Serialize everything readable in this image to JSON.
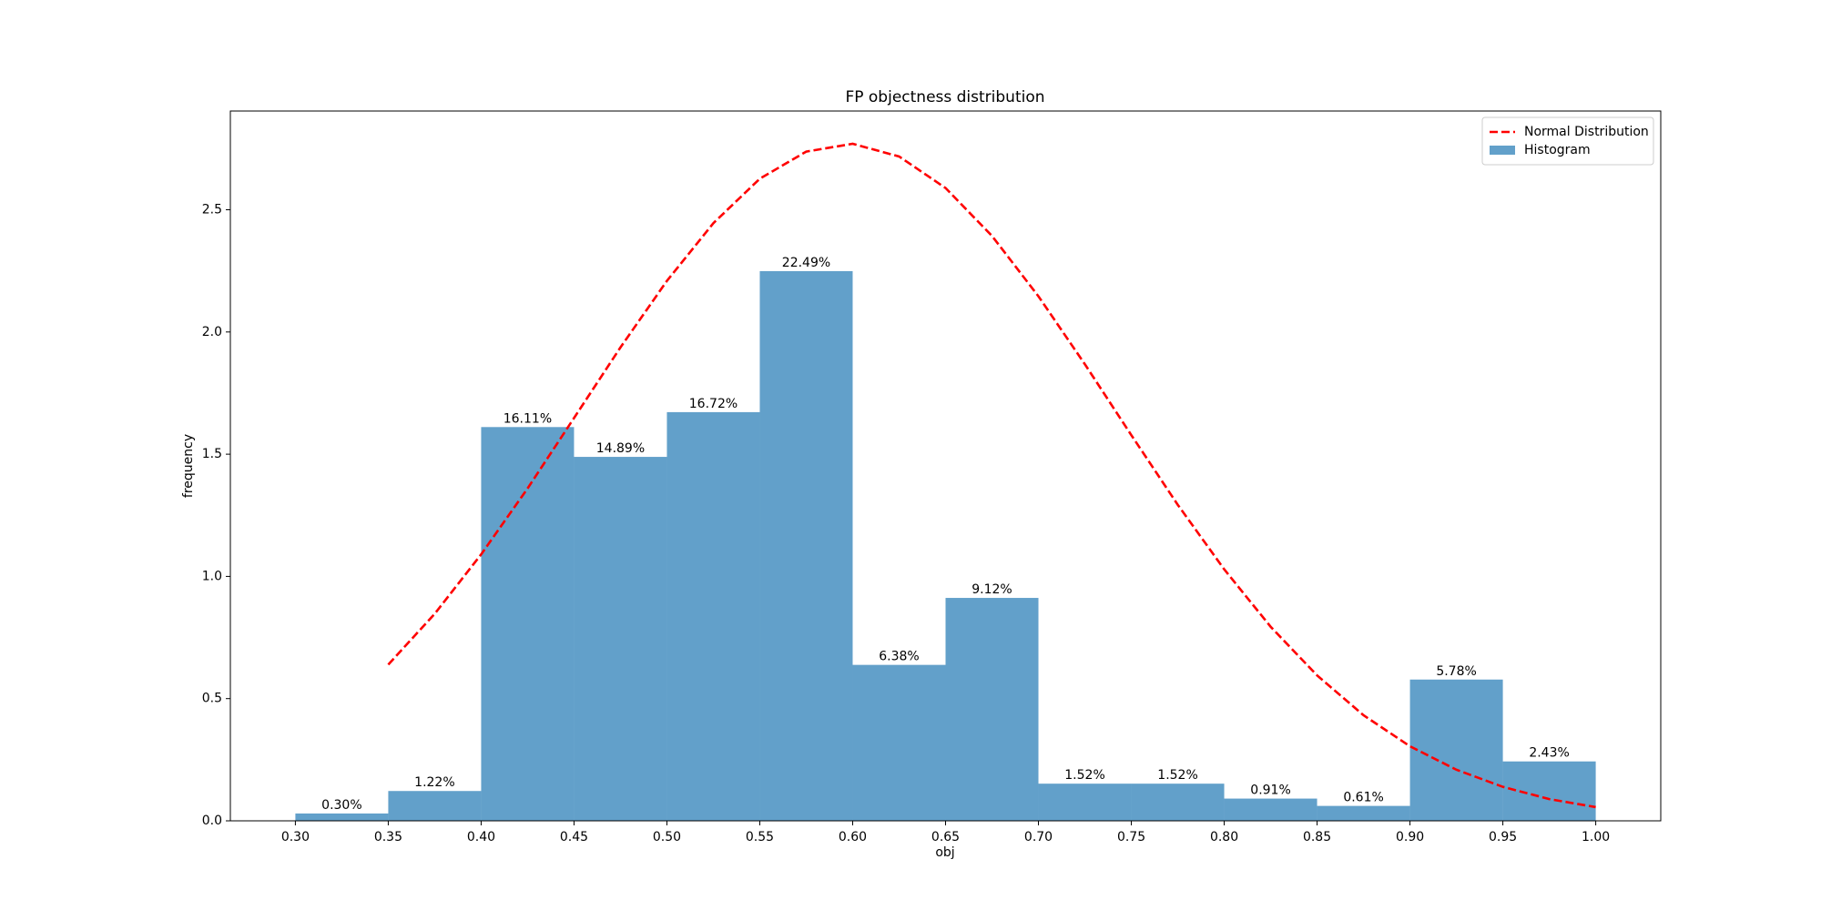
{
  "chart_data": {
    "type": "histogram",
    "title": "FP objectness distribution",
    "xlabel": "obj",
    "ylabel": "frequency",
    "name": "Histogram",
    "color": "#1f77b4",
    "opacity": 0.7,
    "bins": [
      0.3,
      0.35,
      0.4,
      0.45,
      0.5,
      0.55,
      0.6,
      0.65,
      0.7,
      0.75,
      0.8,
      0.85,
      0.9,
      0.95,
      1.0
    ],
    "values": [
      0.03,
      0.122,
      1.611,
      1.489,
      1.672,
      2.249,
      0.638,
      0.912,
      0.152,
      0.152,
      0.091,
      0.061,
      0.578,
      0.243
    ],
    "value_labels": [
      "0.30%",
      "1.22%",
      "16.11%",
      "14.89%",
      "16.72%",
      "22.49%",
      "6.38%",
      "9.12%",
      "1.52%",
      "1.52%",
      "0.91%",
      "0.61%",
      "5.78%",
      "2.43%"
    ],
    "lines": [
      {
        "name": "Normal Distribution",
        "color": "#ff0000",
        "style": "dashed",
        "x": [
          0.35,
          0.375,
          0.4,
          0.425,
          0.45,
          0.475,
          0.5,
          0.525,
          0.55,
          0.575,
          0.6,
          0.625,
          0.65,
          0.675,
          0.7,
          0.725,
          0.75,
          0.775,
          0.8,
          0.825,
          0.85,
          0.875,
          0.9,
          0.925,
          0.95,
          0.975,
          1.0
        ],
        "values": [
          0.639,
          0.847,
          1.09,
          1.36,
          1.648,
          1.937,
          2.209,
          2.445,
          2.627,
          2.738,
          2.77,
          2.718,
          2.589,
          2.393,
          2.146,
          1.868,
          1.578,
          1.293,
          1.029,
          0.794,
          0.595,
          0.432,
          0.305,
          0.209,
          0.139,
          0.089,
          0.056
        ]
      }
    ],
    "xlim": [
      0.265,
      1.035
    ],
    "ylim": [
      0,
      2.904
    ],
    "xticks": [
      {
        "value": 0.3,
        "label": "0.30"
      },
      {
        "value": 0.35,
        "label": "0.35"
      },
      {
        "value": 0.4,
        "label": "0.40"
      },
      {
        "value": 0.45,
        "label": "0.45"
      },
      {
        "value": 0.5,
        "label": "0.50"
      },
      {
        "value": 0.55,
        "label": "0.55"
      },
      {
        "value": 0.6,
        "label": "0.60"
      },
      {
        "value": 0.65,
        "label": "0.65"
      },
      {
        "value": 0.7,
        "label": "0.70"
      },
      {
        "value": 0.75,
        "label": "0.75"
      },
      {
        "value": 0.8,
        "label": "0.80"
      },
      {
        "value": 0.85,
        "label": "0.85"
      },
      {
        "value": 0.9,
        "label": "0.90"
      },
      {
        "value": 0.95,
        "label": "0.95"
      },
      {
        "value": 1.0,
        "label": "1.00"
      }
    ],
    "yticks": [
      {
        "value": 0,
        "label": "0.0"
      },
      0.5,
      {
        "value": 1,
        "label": "1.0"
      },
      1.5,
      {
        "value": 2,
        "label": "2.0"
      },
      2.5
    ],
    "grid": false,
    "legend": "upper right"
  }
}
